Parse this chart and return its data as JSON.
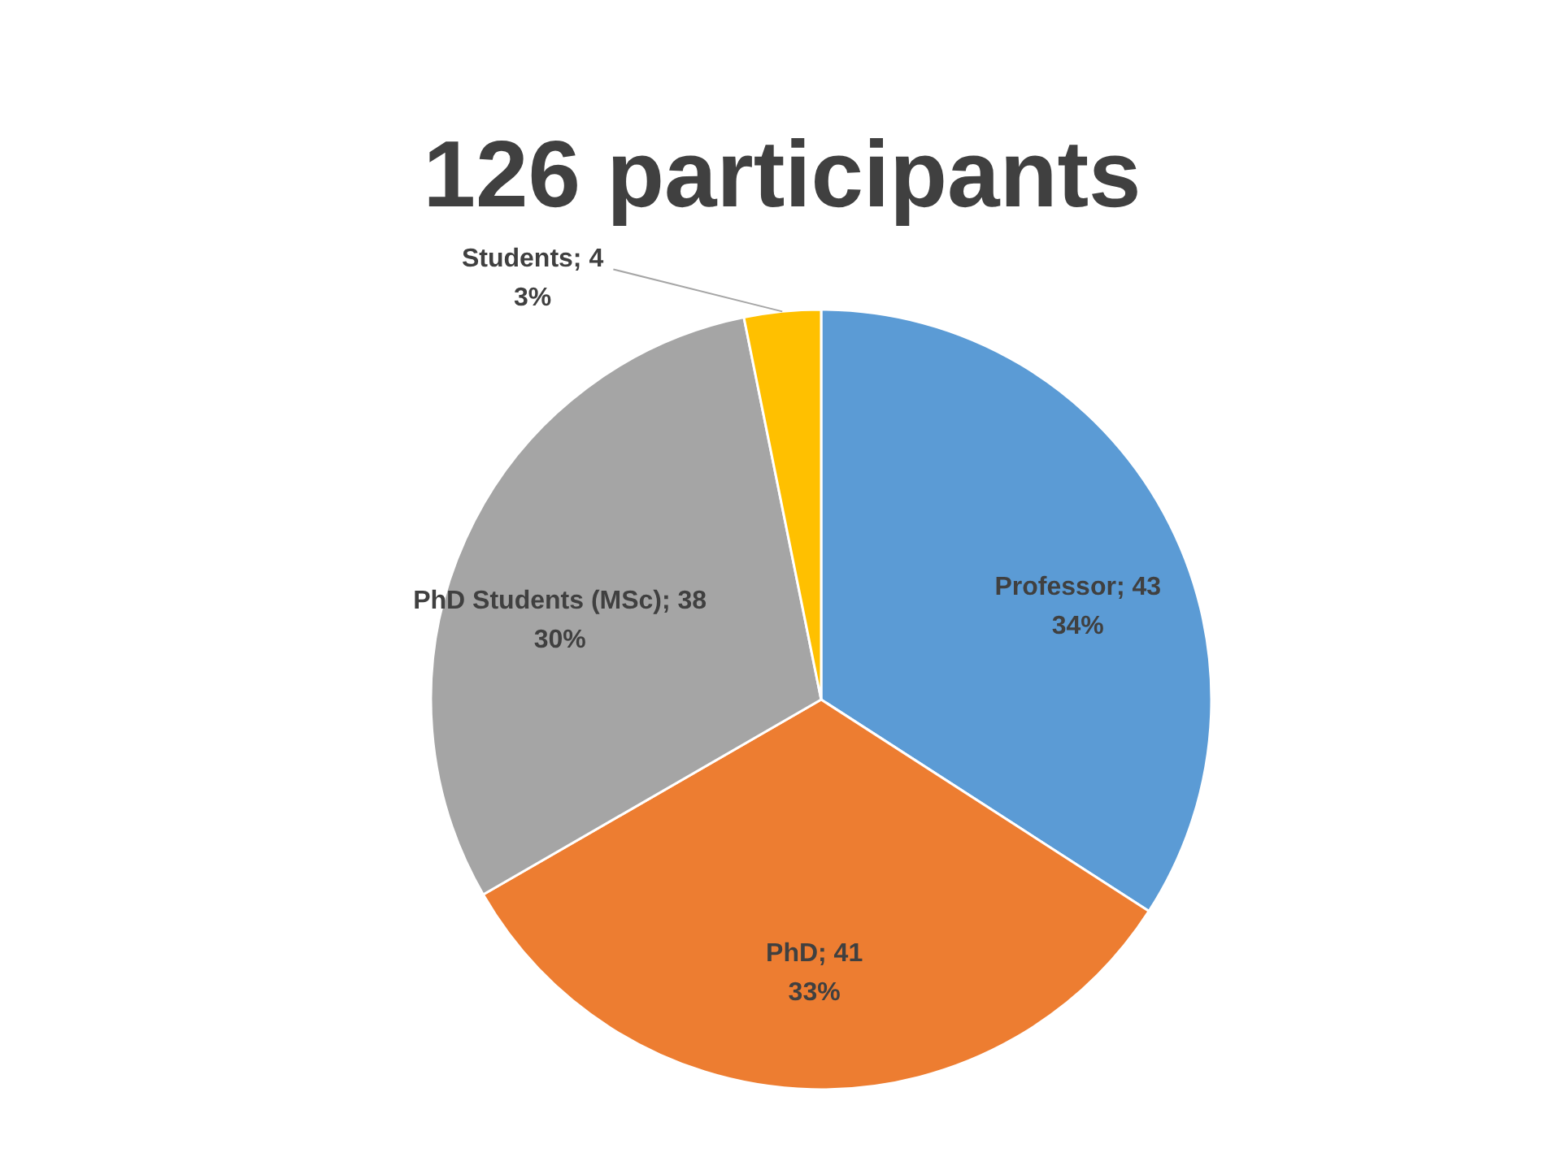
{
  "chart_data": {
    "type": "pie",
    "title": "126 participants",
    "categories": [
      "Professor",
      "PhD",
      "PhD Students (MSc)",
      "Students"
    ],
    "values": [
      43,
      41,
      38,
      4
    ],
    "colors": [
      "#5b9bd5",
      "#ed7d31",
      "#a5a5a5",
      "#ffc000"
    ],
    "value_labels": [
      "43\n34%",
      "41\n33%",
      "38\n30%",
      "4\n3%"
    ]
  }
}
